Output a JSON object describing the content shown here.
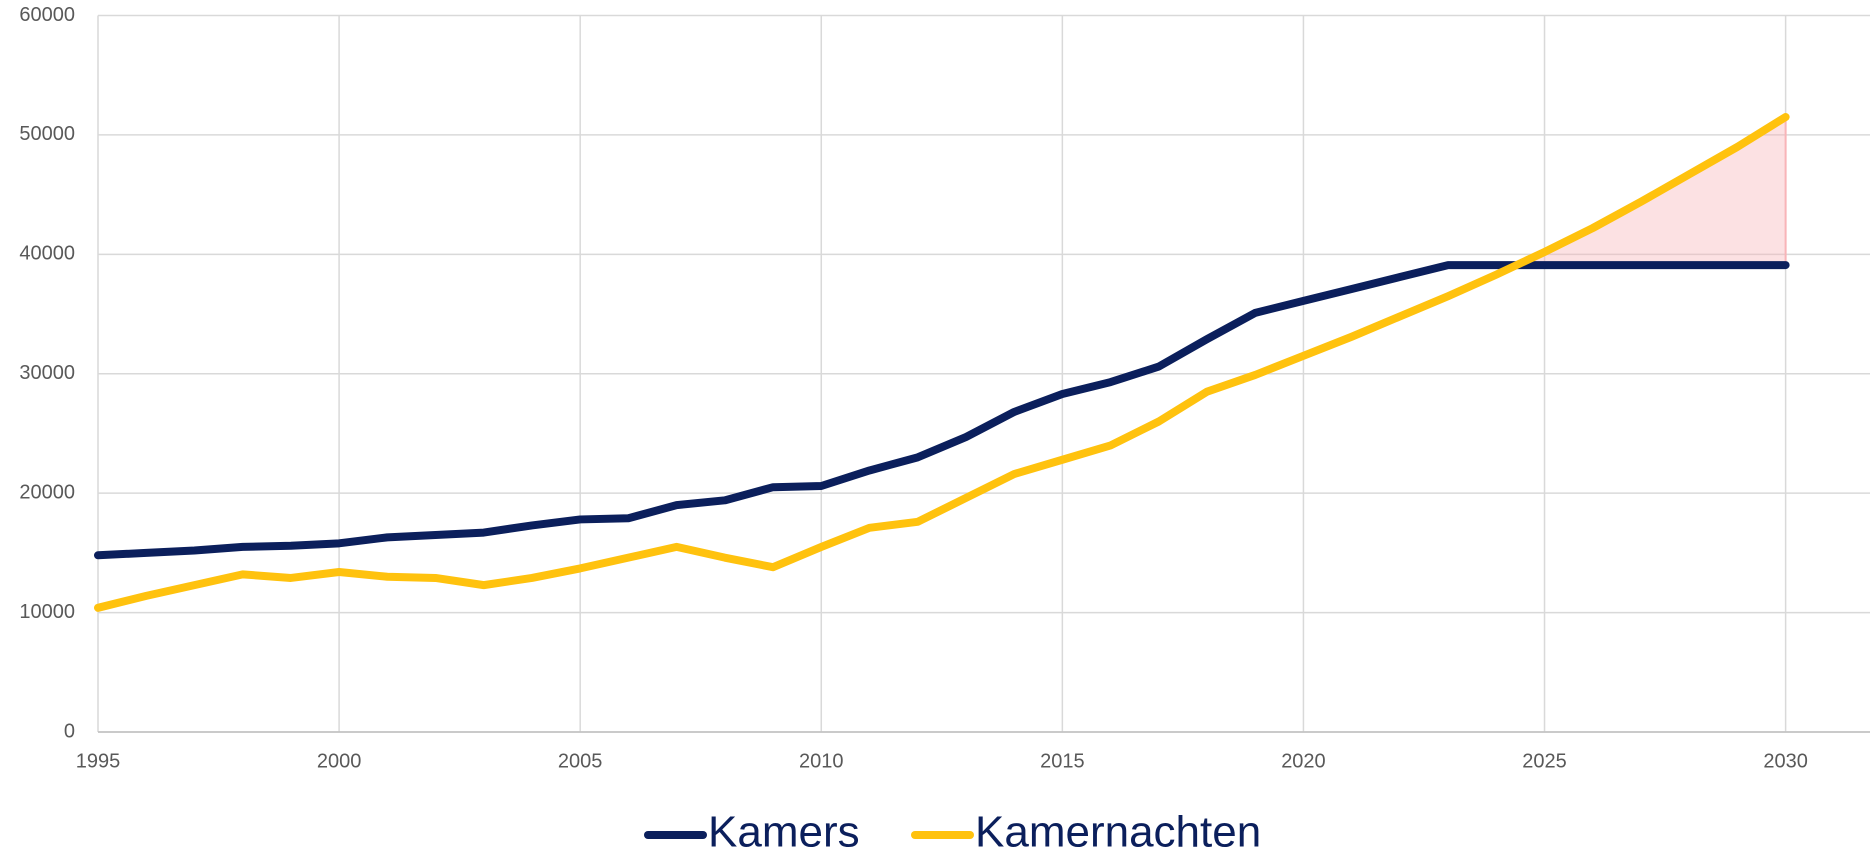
{
  "chart_data": {
    "type": "line",
    "x": [
      1995,
      1996,
      1997,
      1998,
      1999,
      2000,
      2001,
      2002,
      2003,
      2004,
      2005,
      2006,
      2007,
      2008,
      2009,
      2010,
      2011,
      2012,
      2013,
      2014,
      2015,
      2016,
      2017,
      2018,
      2019,
      2020,
      2021,
      2022,
      2023,
      2024,
      2025,
      2026,
      2027,
      2028,
      2029,
      2030
    ],
    "series": [
      {
        "name": "Kamers",
        "color": "#0b1f5c",
        "values": [
          14800,
          15000,
          15200,
          15500,
          15600,
          15800,
          16300,
          16500,
          16700,
          17300,
          17800,
          17900,
          19000,
          19400,
          20500,
          20600,
          21900,
          23000,
          24700,
          26800,
          28300,
          29300,
          30600,
          32900,
          35100,
          36100,
          37100,
          38100,
          39100,
          39100,
          39100,
          39100,
          39100,
          39100,
          39100,
          39100
        ]
      },
      {
        "name": "Kamernachten",
        "color": "#ffc20e",
        "values": [
          10400,
          11400,
          12300,
          13200,
          12900,
          13400,
          13000,
          12900,
          12300,
          12900,
          13700,
          14600,
          15500,
          14600,
          13800,
          15500,
          17100,
          17600,
          19600,
          21600,
          22800,
          24000,
          26000,
          28500,
          29900,
          31500,
          33100,
          34800,
          36500,
          38300,
          40200,
          42200,
          44400,
          46700,
          49000,
          51500
        ]
      }
    ],
    "gap_fill": "#f8b4b8",
    "xlim": [
      1995,
      2031.75
    ],
    "xticks": [
      1995,
      2000,
      2005,
      2010,
      2015,
      2020,
      2025,
      2030
    ],
    "ylim": [
      0,
      60000
    ],
    "yticks": [
      0,
      10000,
      20000,
      30000,
      40000,
      50000,
      60000
    ],
    "grid": true,
    "legend": "bottom"
  }
}
